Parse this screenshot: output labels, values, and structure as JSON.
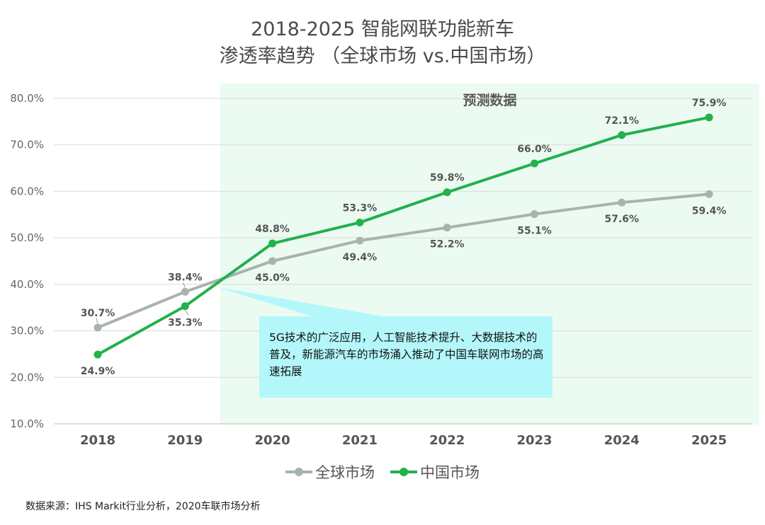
{
  "title_line1": "2018-2025 智能网联功能新车",
  "title_line2": "渗透率趋势 （全球市场 vs.中国市场）",
  "forecast_label": "预测数据",
  "callout_text": "5G技术的广泛应用，人工智能技术提升、大数据技术的普及，新能源汽车的市场涌入推动了中国车联网市场的高速拓展",
  "source_text": "数据来源：IHS Markit行业分析，2020车联市场分析",
  "colors": {
    "global": "#a8b2ae",
    "china": "#22b14c",
    "forecast_bg": "#ecfbf1",
    "callout_bg": "#b3f7fb",
    "grid": "#d9d9d9"
  },
  "chart_data": {
    "type": "line",
    "categories": [
      "2018",
      "2019",
      "2020",
      "2021",
      "2022",
      "2023",
      "2024",
      "2025"
    ],
    "ylim": [
      10,
      80
    ],
    "yticks": [
      "10.0%",
      "20.0%",
      "30.0%",
      "40.0%",
      "50.0%",
      "60.0%",
      "70.0%",
      "80.0%"
    ],
    "ytick_values": [
      10,
      20,
      30,
      40,
      50,
      60,
      70,
      80
    ],
    "forecast_start": "2020",
    "series": [
      {
        "name": "全球市场",
        "color": "#a8b2ae",
        "values": [
          30.7,
          38.4,
          45.0,
          49.4,
          52.2,
          55.1,
          57.6,
          59.4
        ],
        "labels": [
          "30.7%",
          "38.4%",
          "45.0%",
          "49.4%",
          "52.2%",
          "55.1%",
          "57.6%",
          "59.4%"
        ]
      },
      {
        "name": "中国市场",
        "color": "#22b14c",
        "values": [
          24.9,
          35.3,
          48.8,
          53.3,
          59.8,
          66.0,
          72.1,
          75.9
        ],
        "labels": [
          "24.9%",
          "35.3%",
          "48.8%",
          "53.3%",
          "59.8%",
          "66.0%",
          "72.1%",
          "75.9%"
        ]
      }
    ],
    "legend_position": "bottom",
    "grid": true
  }
}
